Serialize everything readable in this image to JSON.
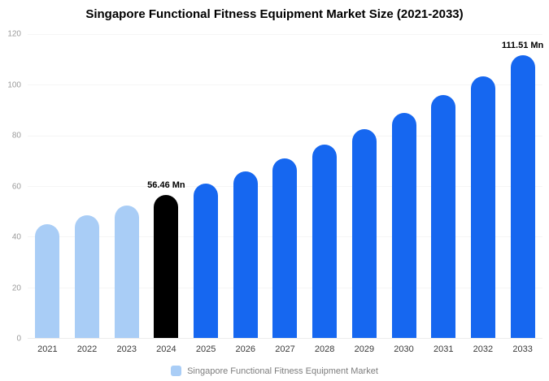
{
  "title": "Singapore Functional Fitness Equipment Market Size (2021-2033)",
  "legend": {
    "label": "Singapore Functional Fitness Equipment Market",
    "swatch_color": "#a9cdf6"
  },
  "colors": {
    "historical_bar": "#a9cdf6",
    "highlight_bar": "#000000",
    "forecast_bar": "#1667f0"
  },
  "chart_data": {
    "type": "bar",
    "title": "Singapore Functional Fitness Equipment Market Size (2021-2033)",
    "categories": [
      "2021",
      "2022",
      "2023",
      "2024",
      "2025",
      "2026",
      "2027",
      "2028",
      "2029",
      "2030",
      "2031",
      "2032",
      "2033"
    ],
    "values": [
      45.0,
      48.5,
      52.3,
      56.46,
      60.9,
      65.7,
      70.8,
      76.4,
      82.4,
      88.9,
      95.9,
      103.4,
      111.51
    ],
    "series_colors": [
      "#a9cdf6",
      "#a9cdf6",
      "#a9cdf6",
      "#000000",
      "#1667f0",
      "#1667f0",
      "#1667f0",
      "#1667f0",
      "#1667f0",
      "#1667f0",
      "#1667f0",
      "#1667f0",
      "#1667f0"
    ],
    "value_labels": {
      "2024": "56.46 Mn",
      "2033": "111.51 Mn"
    },
    "xlabel": "",
    "ylabel": "",
    "ylim": [
      0,
      120
    ],
    "yticks": [
      0,
      20,
      40,
      60,
      80,
      100,
      120
    ],
    "grid": false,
    "legend_position": "bottom",
    "legend_entries": [
      "Singapore Functional Fitness Equipment Market"
    ]
  }
}
